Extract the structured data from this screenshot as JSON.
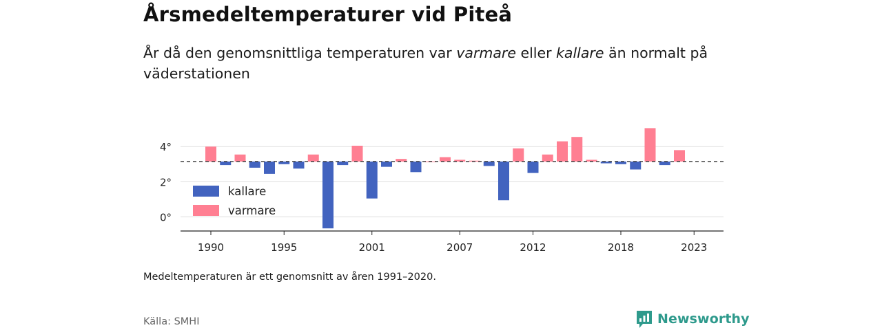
{
  "header": {
    "title": "Årsmedeltemperaturer vid Piteå",
    "subtitle_part1": "År då den genomsnittliga temperaturen var ",
    "subtitle_warm": "varmare",
    "subtitle_part2": " eller ",
    "subtitle_cold": "kallare",
    "subtitle_part3": " än normalt på väderstationen"
  },
  "footer": {
    "note": "Medeltemperaturen är ett genomsnitt av åren 1991–2020.",
    "source": "Källa: SMHI",
    "brand": "Newsworthy"
  },
  "colors": {
    "cold": "#4263bf",
    "warm": "#ff7f92",
    "brand": "#2e9a8c"
  },
  "chart_data": {
    "type": "bar",
    "baseline": 3.15,
    "baseline_style": "dashed",
    "ylim": [
      -0.8,
      5.3
    ],
    "yticks": [
      0,
      2,
      4
    ],
    "ytick_labels": [
      "0°",
      "2°",
      "4°"
    ],
    "xticks": [
      1990,
      1995,
      2001,
      2007,
      2012,
      2018,
      2023
    ],
    "grid": true,
    "legend_position": "bottom-left",
    "series": [
      {
        "name": "kallare",
        "color": "#4263bf"
      },
      {
        "name": "varmare",
        "color": "#ff7f92"
      }
    ],
    "years": [
      1990,
      1991,
      1992,
      1993,
      1994,
      1995,
      1996,
      1997,
      1998,
      1999,
      2000,
      2001,
      2002,
      2003,
      2004,
      2005,
      2006,
      2007,
      2008,
      2009,
      2010,
      2011,
      2012,
      2013,
      2014,
      2015,
      2016,
      2017,
      2018,
      2019,
      2020,
      2021,
      2022
    ],
    "values": [
      4.0,
      2.95,
      3.55,
      2.8,
      2.45,
      3.0,
      2.75,
      3.55,
      -0.65,
      2.95,
      4.05,
      1.05,
      2.85,
      3.3,
      2.55,
      3.15,
      3.4,
      3.25,
      3.2,
      2.9,
      0.95,
      3.9,
      2.5,
      3.55,
      4.3,
      4.55,
      3.25,
      3.05,
      3.0,
      2.7,
      5.05,
      2.95,
      3.8
    ]
  }
}
